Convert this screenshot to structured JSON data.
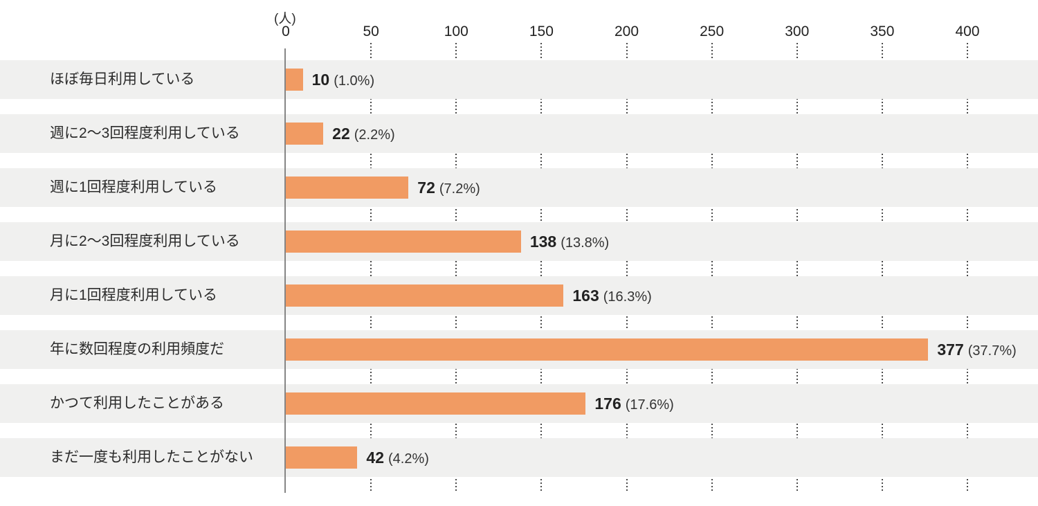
{
  "chart_data": {
    "type": "bar",
    "orientation": "horizontal",
    "unit_label": "(人)",
    "title": "",
    "xlabel": "",
    "ylabel": "",
    "axis": {
      "min": 0,
      "max": 400,
      "tick_interval": 50,
      "ticks": [
        0,
        50,
        100,
        150,
        200,
        250,
        300,
        350,
        400
      ],
      "grid": "dotted-vertical"
    },
    "categories": [
      "ほぼ毎日利用している",
      "週に2〜3回程度利用している",
      "週に1回程度利用している",
      "月に2〜3回程度利用している",
      "月に1回程度利用している",
      "年に数回程度の利用頻度だ",
      "かつて利用したことがある",
      "まだ一度も利用したことがない"
    ],
    "values": [
      10,
      22,
      72,
      138,
      163,
      377,
      176,
      42
    ],
    "rows": [
      {
        "label": "ほぼ毎日利用している",
        "value": "10",
        "pct": "(1.0%)"
      },
      {
        "label": "週に2〜3回程度利用している",
        "value": "22",
        "pct": "(2.2%)"
      },
      {
        "label": "週に1回程度利用している",
        "value": "72",
        "pct": "(7.2%)"
      },
      {
        "label": "月に2〜3回程度利用している",
        "value": "138",
        "pct": "(13.8%)"
      },
      {
        "label": "月に1回程度利用している",
        "value": "163",
        "pct": "(16.3%)"
      },
      {
        "label": "年に数回程度の利用頻度だ",
        "value": "377",
        "pct": "(37.7%)"
      },
      {
        "label": "かつて利用したことがある",
        "value": "176",
        "pct": "(17.6%)"
      },
      {
        "label": "まだ一度も利用したことがない",
        "value": "42",
        "pct": "(4.2%)"
      }
    ],
    "colors": {
      "bar": "#f19b63",
      "row_stripe": "#f0f0ef",
      "axis_line": "#858585",
      "grid_dots": "#4a4a4a",
      "text": "#2b2b2b"
    }
  }
}
